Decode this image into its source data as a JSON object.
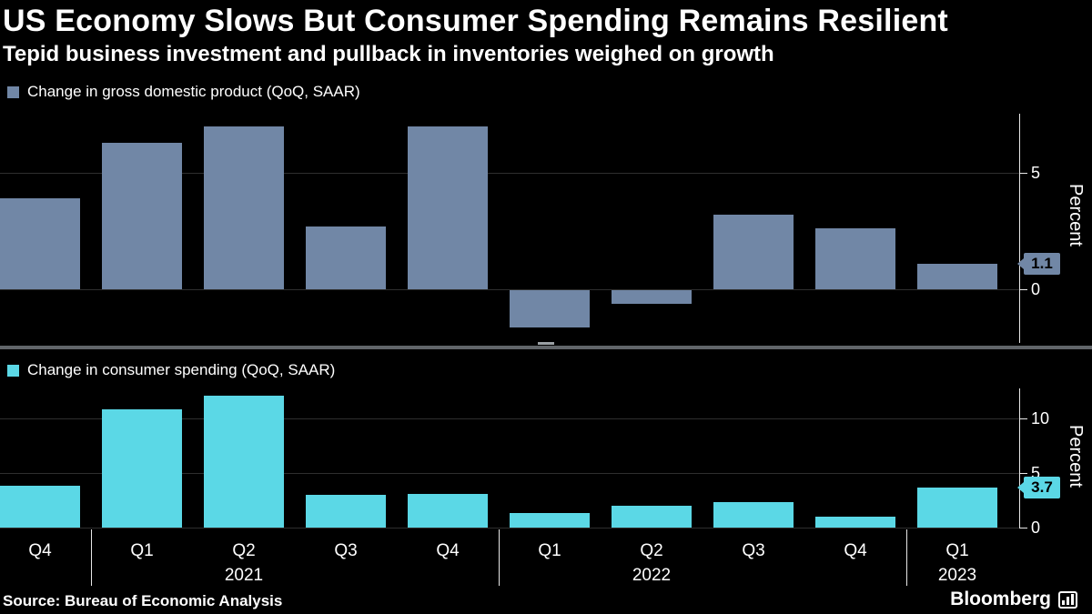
{
  "header": {
    "title": "US Economy Slows But Consumer Spending Remains Resilient",
    "subtitle": "Tepid business investment and pullback in inventories weighed on growth"
  },
  "chart_data": [
    {
      "type": "bar",
      "title": "Change in gross domestic product (QoQ, SAAR)",
      "color": "#7187A6",
      "categories": [
        "Q4 2020",
        "Q1 2021",
        "Q2 2021",
        "Q3 2021",
        "Q4 2021",
        "Q1 2022",
        "Q2 2022",
        "Q3 2022",
        "Q4 2022",
        "Q1 2023"
      ],
      "values": [
        3.9,
        6.3,
        7.0,
        2.7,
        7.0,
        -1.6,
        -0.6,
        3.2,
        2.6,
        1.1
      ],
      "ylabel": "Percent",
      "yticks": [
        5,
        0
      ],
      "ylim": [
        -2.3,
        7.6
      ],
      "end_label": "1.1",
      "grid": true,
      "legend_position": "top-left"
    },
    {
      "type": "bar",
      "title": "Change in consumer spending (QoQ, SAAR)",
      "color": "#5BD8E6",
      "categories": [
        "Q4 2020",
        "Q1 2021",
        "Q2 2021",
        "Q3 2021",
        "Q4 2021",
        "Q1 2022",
        "Q2 2022",
        "Q3 2022",
        "Q4 2022",
        "Q1 2023"
      ],
      "values": [
        3.8,
        10.8,
        12.1,
        3.0,
        3.1,
        1.3,
        2.0,
        2.3,
        1.0,
        3.7
      ],
      "ylabel": "Percent",
      "yticks": [
        10,
        5,
        0
      ],
      "ylim": [
        0,
        12.8
      ],
      "end_label": "3.7",
      "grid": true,
      "legend_position": "top-left"
    }
  ],
  "x_axis": {
    "quarter_labels": [
      "Q4",
      "Q1",
      "Q2",
      "Q3",
      "Q4",
      "Q1",
      "Q2",
      "Q3",
      "Q4",
      "Q1"
    ],
    "year_labels": [
      {
        "text": "2021",
        "center_index": 2
      },
      {
        "text": "2022",
        "center_index": 6
      },
      {
        "text": "2023",
        "center_index": 9
      }
    ]
  },
  "footer": {
    "source": "Source: Bureau of Economic Analysis",
    "brand": "Bloomberg"
  },
  "colors": {
    "background": "#000000",
    "grid": "#2E2E2E",
    "axis": "#E8E8E8",
    "text": "#FFFFFF",
    "separator": "#616569"
  }
}
